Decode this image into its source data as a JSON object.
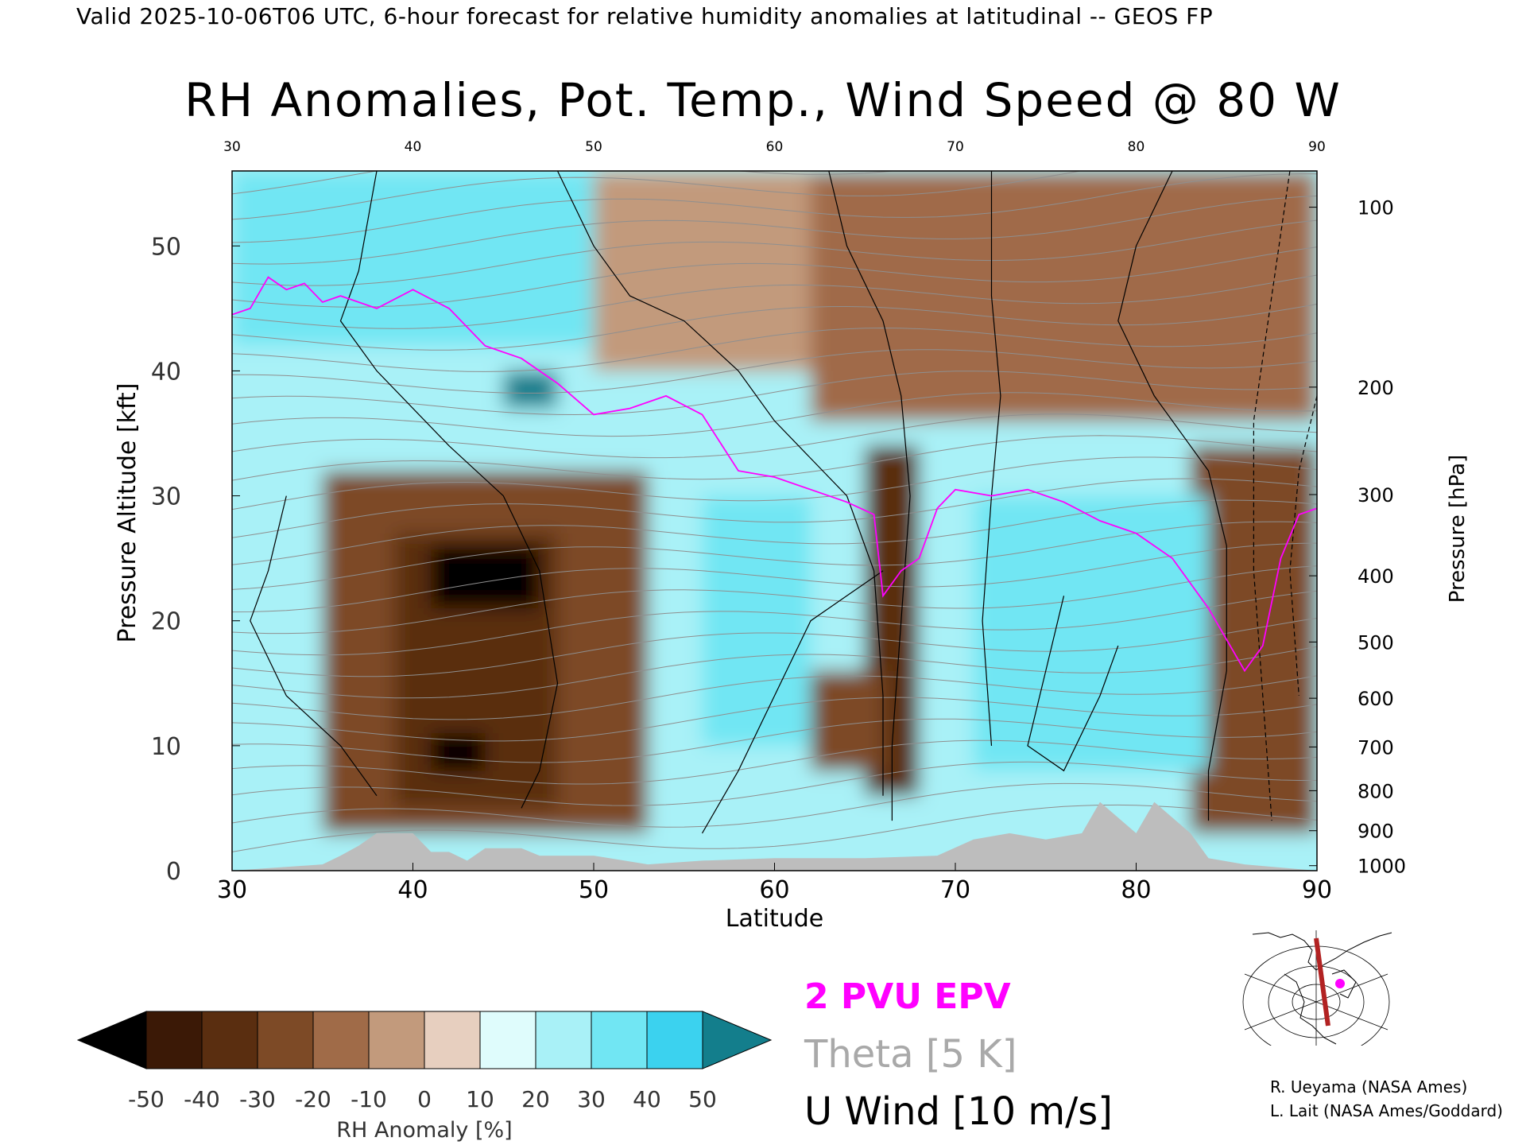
{
  "header": {
    "line": "Valid 2025-10-06T06 UTC, 6-hour forecast for relative humidity anomalies at latitudinal -- GEOS FP"
  },
  "chart_data": {
    "type": "heatmap",
    "title": "RH Anomalies, Pot. Temp., Wind Speed @ 80 W",
    "xlabel": "Latitude",
    "ylabel_left": "Pressure Altitude [kft]",
    "ylabel_right": "Pressure [hPa]",
    "xlim": [
      30,
      90
    ],
    "ylim": [
      0,
      56
    ],
    "x_ticks": [
      "30",
      "40",
      "50",
      "60",
      "70",
      "80",
      "90"
    ],
    "x_ticks_top": [
      "30",
      "40",
      "50",
      "60",
      "70",
      "80",
      "90"
    ],
    "y_ticks_left": [
      "0",
      "10",
      "20",
      "30",
      "40",
      "50"
    ],
    "y_ticks_right": [
      {
        "label": "100",
        "kft": 53.1
      },
      {
        "label": "200",
        "kft": 38.7
      },
      {
        "label": "300",
        "kft": 30.1
      },
      {
        "label": "400",
        "kft": 23.6
      },
      {
        "label": "500",
        "kft": 18.3
      },
      {
        "label": "600",
        "kft": 13.8
      },
      {
        "label": "700",
        "kft": 9.9
      },
      {
        "label": "800",
        "kft": 6.4
      },
      {
        "label": "900",
        "kft": 3.2
      },
      {
        "label": "1000",
        "kft": 0.4
      }
    ],
    "rh_anomaly_regions": [
      {
        "lat": [
          30,
          90
        ],
        "kft": [
          0,
          56
        ],
        "value": 20
      },
      {
        "lat": [
          30,
          55
        ],
        "kft": [
          42,
          56
        ],
        "value": 30
      },
      {
        "lat": [
          50,
          90
        ],
        "kft": [
          40,
          56
        ],
        "value": -10
      },
      {
        "lat": [
          62,
          90
        ],
        "kft": [
          36,
          56
        ],
        "value": -15
      },
      {
        "lat": [
          35,
          53
        ],
        "kft": [
          3,
          32
        ],
        "value": -30
      },
      {
        "lat": [
          39,
          48
        ],
        "kft": [
          5,
          27
        ],
        "value": -40
      },
      {
        "lat": [
          41,
          47
        ],
        "kft": [
          21,
          26
        ],
        "value": -55
      },
      {
        "lat": [
          41,
          44
        ],
        "kft": [
          8,
          11
        ],
        "value": -55
      },
      {
        "lat": [
          45,
          48
        ],
        "kft": [
          37,
          40
        ],
        "value": 55
      },
      {
        "lat": [
          65,
          68
        ],
        "kft": [
          6,
          34
        ],
        "value": -40
      },
      {
        "lat": [
          62,
          66
        ],
        "kft": [
          8,
          16
        ],
        "value": -30
      },
      {
        "lat": [
          83,
          90
        ],
        "kft": [
          3,
          34
        ],
        "value": -30
      },
      {
        "lat": [
          71,
          84
        ],
        "kft": [
          8,
          30
        ],
        "value": 35
      },
      {
        "lat": [
          56,
          62
        ],
        "kft": [
          10,
          30
        ],
        "value": 30
      }
    ],
    "terrain_kft": [
      [
        30,
        0
      ],
      [
        35,
        0.5
      ],
      [
        36,
        1.2
      ],
      [
        37,
        2.0
      ],
      [
        38,
        3.0
      ],
      [
        40,
        3.0
      ],
      [
        41,
        1.5
      ],
      [
        42,
        1.5
      ],
      [
        43,
        0.8
      ],
      [
        44,
        1.8
      ],
      [
        46,
        1.8
      ],
      [
        47,
        1.2
      ],
      [
        50,
        1.2
      ],
      [
        53,
        0.5
      ],
      [
        56,
        0.8
      ],
      [
        60,
        1.0
      ],
      [
        65,
        1.0
      ],
      [
        69,
        1.2
      ],
      [
        71,
        2.5
      ],
      [
        73,
        3.0
      ],
      [
        75,
        2.5
      ],
      [
        77,
        3.0
      ],
      [
        78,
        5.5
      ],
      [
        80,
        3.0
      ],
      [
        81,
        5.5
      ],
      [
        83,
        3.0
      ],
      [
        84,
        1.0
      ],
      [
        86,
        0.5
      ],
      [
        90,
        0
      ]
    ],
    "epv_2pvu_kft": [
      [
        30,
        44.5
      ],
      [
        31,
        45
      ],
      [
        32,
        47.5
      ],
      [
        33,
        46.5
      ],
      [
        34,
        47
      ],
      [
        35,
        45.5
      ],
      [
        36,
        46
      ],
      [
        38,
        45
      ],
      [
        40,
        46.5
      ],
      [
        42,
        45
      ],
      [
        44,
        42
      ],
      [
        46,
        41
      ],
      [
        48,
        39
      ],
      [
        50,
        36.5
      ],
      [
        52,
        37
      ],
      [
        54,
        38
      ],
      [
        56,
        36.5
      ],
      [
        58,
        32
      ],
      [
        60,
        31.5
      ],
      [
        62,
        30.5
      ],
      [
        64,
        29.5
      ],
      [
        65.5,
        28.5
      ],
      [
        66,
        22
      ],
      [
        67,
        24
      ],
      [
        68,
        25
      ],
      [
        69,
        29
      ],
      [
        70,
        30.5
      ],
      [
        72,
        30
      ],
      [
        74,
        30.5
      ],
      [
        76,
        29.5
      ],
      [
        78,
        28
      ],
      [
        80,
        27
      ],
      [
        82,
        25
      ],
      [
        84,
        21
      ],
      [
        86,
        16
      ],
      [
        87,
        18
      ],
      [
        88,
        25
      ],
      [
        89,
        28.5
      ],
      [
        90,
        29
      ]
    ],
    "color_scale": {
      "label": "RH Anomaly [%]",
      "ticks": [
        "-50",
        "-40",
        "-30",
        "-20",
        "-10",
        "0",
        "10",
        "20",
        "30",
        "40",
        "50"
      ],
      "colors": [
        "#000000",
        "#3b1906",
        "#5a2e10",
        "#7d4a26",
        "#a06b48",
        "#c29a7c",
        "#e7cfbf",
        "#dffcfc",
        "#a9f1f7",
        "#71e6f3",
        "#3bd2ef",
        "#1da8cc",
        "#137e8c"
      ]
    },
    "legend": [
      {
        "label": "2 PVU EPV",
        "color": "#ff00ff"
      },
      {
        "label": "Theta [5 K]",
        "color": "#a9a9a9"
      },
      {
        "label": "U Wind [10 m/s]",
        "color": "#000000"
      }
    ]
  },
  "credits": {
    "line1": "R. Ueyama (NASA Ames)",
    "line2": "L. Lait (NASA Ames/Goddard)"
  }
}
